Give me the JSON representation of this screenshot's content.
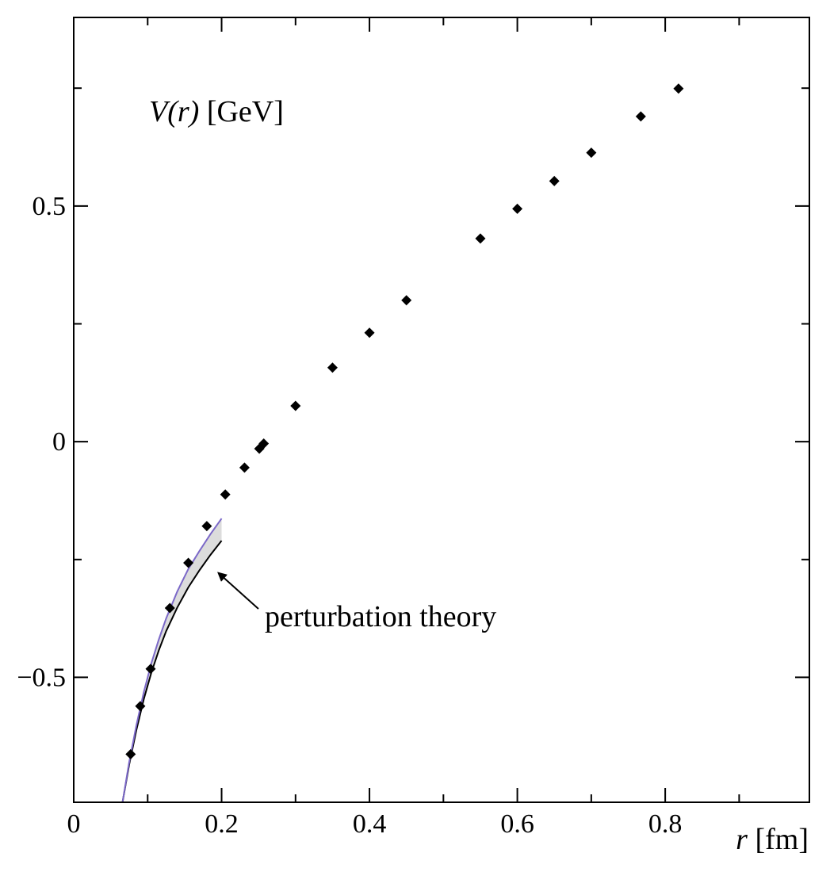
{
  "chart_data": {
    "type": "scatter",
    "title": "",
    "ylabel": {
      "symbol": "V(r)",
      "unit": "[GeV]"
    },
    "xlabel": {
      "symbol": "r",
      "unit": "[fm]"
    },
    "xlim": [
      0,
      0.995
    ],
    "ylim": [
      -0.765,
      0.9
    ],
    "x_ticks": [
      0,
      0.2,
      0.4,
      0.6,
      0.8
    ],
    "x_tick_labels": [
      "0",
      "0.2",
      "0.4",
      "0.6",
      "0.8"
    ],
    "x_minor_ticks": [
      0.1,
      0.3,
      0.5,
      0.7,
      0.9
    ],
    "y_ticks": [
      -0.5,
      0,
      0.5
    ],
    "y_tick_labels": [
      "−0.5",
      "0",
      "0.5"
    ],
    "y_minor_ticks": [
      -0.25,
      0.25,
      0.75
    ],
    "grid": false,
    "legend": "none",
    "series": [
      {
        "type": "scatter",
        "marker": "diamond",
        "color": "#000000",
        "points": [
          {
            "x": 0.077,
            "y": -0.663
          },
          {
            "x": 0.09,
            "y": -0.561
          },
          {
            "x": 0.104,
            "y": -0.482
          },
          {
            "x": 0.13,
            "y": -0.353
          },
          {
            "x": 0.155,
            "y": -0.257
          },
          {
            "x": 0.18,
            "y": -0.179
          },
          {
            "x": 0.205,
            "y": -0.112
          },
          {
            "x": 0.231,
            "y": -0.055
          },
          {
            "x": 0.251,
            "y": -0.015
          },
          {
            "x": 0.257,
            "y": -0.004
          },
          {
            "x": 0.3,
            "y": 0.076
          },
          {
            "x": 0.35,
            "y": 0.157
          },
          {
            "x": 0.4,
            "y": 0.231
          },
          {
            "x": 0.45,
            "y": 0.3
          },
          {
            "x": 0.55,
            "y": 0.431
          },
          {
            "x": 0.6,
            "y": 0.494
          },
          {
            "x": 0.65,
            "y": 0.553
          },
          {
            "x": 0.7,
            "y": 0.613
          },
          {
            "x": 0.767,
            "y": 0.69
          },
          {
            "x": 0.818,
            "y": 0.749
          }
        ]
      },
      {
        "type": "band",
        "fill": "#dcdcdc",
        "upper_color": "#7b68c8",
        "lower_color": "#000000",
        "upper": [
          {
            "x": 0.066,
            "y": -0.765
          },
          {
            "x": 0.075,
            "y": -0.68
          },
          {
            "x": 0.085,
            "y": -0.6
          },
          {
            "x": 0.095,
            "y": -0.53
          },
          {
            "x": 0.105,
            "y": -0.47
          },
          {
            "x": 0.115,
            "y": -0.42
          },
          {
            "x": 0.125,
            "y": -0.375
          },
          {
            "x": 0.14,
            "y": -0.318
          },
          {
            "x": 0.155,
            "y": -0.27
          },
          {
            "x": 0.17,
            "y": -0.232
          },
          {
            "x": 0.185,
            "y": -0.196
          },
          {
            "x": 0.2,
            "y": -0.163
          }
        ],
        "lower": [
          {
            "x": 0.066,
            "y": -0.765
          },
          {
            "x": 0.075,
            "y": -0.685
          },
          {
            "x": 0.085,
            "y": -0.61
          },
          {
            "x": 0.095,
            "y": -0.545
          },
          {
            "x": 0.105,
            "y": -0.49
          },
          {
            "x": 0.115,
            "y": -0.443
          },
          {
            "x": 0.125,
            "y": -0.402
          },
          {
            "x": 0.14,
            "y": -0.352
          },
          {
            "x": 0.155,
            "y": -0.309
          },
          {
            "x": 0.17,
            "y": -0.273
          },
          {
            "x": 0.185,
            "y": -0.24
          },
          {
            "x": 0.2,
            "y": -0.21
          }
        ]
      }
    ],
    "annotations": [
      {
        "text": "perturbation theory",
        "arrow_target": {
          "x": 0.185,
          "y": -0.265
        }
      }
    ]
  }
}
